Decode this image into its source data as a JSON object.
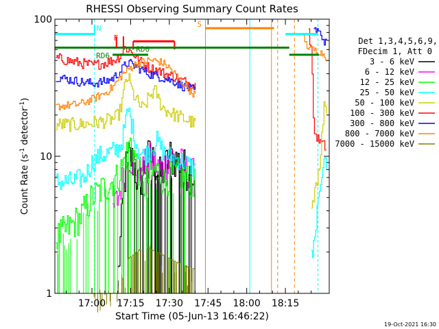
{
  "chart_data": {
    "type": "line",
    "title": "RHESSI Observing Summary Count Rates",
    "xlabel": "Start Time (05-Jun-13 16:46:22)",
    "ylabel": "Count Rate (s⁻¹ detector⁻¹)",
    "ylabel_main": "Count Rate (s",
    "ylabel_sup1": "-1",
    "ylabel_mid": " detector",
    "ylabel_sup2": "-1",
    "ylabel_end": ")",
    "y_scale": "log",
    "ylim": [
      1,
      100
    ],
    "xlim_minutes": [
      -14.37,
      92.0
    ],
    "x_ticks": [
      {
        "label": "17:00",
        "minutes": 0
      },
      {
        "label": "17:15",
        "minutes": 15
      },
      {
        "label": "17:30",
        "minutes": 30
      },
      {
        "label": "17:45",
        "minutes": 45
      },
      {
        "label": "18:00",
        "minutes": 60
      },
      {
        "label": "18:15",
        "minutes": 75
      }
    ],
    "y_ticks": [
      {
        "label": "1",
        "value": 1
      },
      {
        "label": "10",
        "value": 10
      },
      {
        "label": "100",
        "value": 100
      }
    ],
    "legend": {
      "placement": "right",
      "header1": "Det 1,3,4,5,6,9,",
      "header2": "FDecim 1, Att 0",
      "entries": [
        {
          "label": "3 - 6 keV",
          "color": "#000000"
        },
        {
          "label": "6 - 12 keV",
          "color": "#ff00ff"
        },
        {
          "label": "12 - 25 keV",
          "color": "#00ff00"
        },
        {
          "label": "25 - 50 keV",
          "color": "#00ffff"
        },
        {
          "label": "50 - 100 keV",
          "color": "#cccc00"
        },
        {
          "label": "100 - 300 keV",
          "color": "#ff0000"
        },
        {
          "label": "300 - 800 keV",
          "color": "#0000ff"
        },
        {
          "label": "800 - 7000 keV",
          "color": "#ff8000"
        },
        {
          "label": "7000 - 15000 keV",
          "color": "#808000"
        }
      ]
    },
    "series": [
      {
        "name": "3 - 6 keV",
        "color": "#000000",
        "noise": 0.35,
        "floor": 1,
        "x": [
          10,
          11,
          12,
          13,
          14,
          16,
          18,
          20,
          22,
          24,
          26,
          28,
          30,
          32,
          34,
          36,
          38,
          40
        ],
        "y": [
          1.4,
          2.5,
          5,
          8,
          10,
          9,
          6,
          8,
          10,
          9,
          7,
          8,
          10,
          9.5,
          9,
          8,
          7.5,
          7
        ]
      },
      {
        "name": "6 - 12 keV",
        "color": "#ff00ff",
        "noise": 0.3,
        "floor": 1,
        "x": [
          8,
          10,
          12,
          14,
          16,
          18,
          20,
          22,
          24,
          26,
          28,
          30,
          32,
          34,
          36,
          38,
          40
        ],
        "y": [
          4,
          5,
          7,
          10,
          9,
          7,
          8,
          9.5,
          9,
          8,
          8.5,
          10,
          9.5,
          9,
          8,
          7.5,
          7
        ]
      },
      {
        "name": "12 - 25 keV",
        "color": "#00ff00",
        "noise": 0.28,
        "floor": 1,
        "x": [
          -14,
          -5,
          0,
          5,
          10,
          13,
          15,
          17,
          20,
          22,
          25,
          28,
          30,
          33,
          36,
          38,
          40
        ],
        "y": [
          2.5,
          3.5,
          5,
          6,
          7,
          10,
          13,
          9,
          6,
          7,
          8,
          6.5,
          7,
          7.5,
          7,
          6.5,
          6
        ]
      },
      {
        "name": "25 - 50 keV",
        "color": "#00ffff",
        "noise": 0.18,
        "floor": 1,
        "x": [
          -14,
          -8,
          -3,
          0,
          3,
          6,
          9,
          11,
          12,
          13,
          14,
          16,
          18,
          20,
          22,
          24,
          25,
          26,
          28,
          30,
          33,
          36,
          38,
          40
        ],
        "y": [
          6.5,
          6.5,
          7,
          9,
          10,
          10.5,
          11,
          12,
          14,
          18,
          22,
          15,
          11,
          10,
          11,
          12,
          13,
          12,
          10.5,
          10,
          9.5,
          9,
          8.5,
          8
        ]
      },
      {
        "name": "50 - 100 keV",
        "color": "#cccc00",
        "noise": 0.12,
        "floor": 1,
        "x": [
          -14,
          -5,
          0,
          5,
          9,
          10,
          11,
          12,
          13,
          14,
          15,
          16,
          18,
          20,
          22,
          24,
          25,
          26,
          28,
          30,
          32,
          35,
          38,
          40
        ],
        "y": [
          17,
          17,
          17.5,
          18,
          19,
          20,
          22,
          28,
          35,
          38,
          32,
          28,
          24,
          22,
          27,
          30,
          29,
          25,
          22,
          21,
          20,
          19,
          18,
          17
        ]
      },
      {
        "name": "100 - 300 keV",
        "color": "#ff0000",
        "noise": 0.09,
        "floor": 1,
        "x": [
          -14,
          -5,
          0,
          5,
          8,
          10,
          11,
          12,
          13,
          14,
          16,
          18,
          20,
          22,
          24,
          26,
          28,
          30,
          32,
          34,
          36,
          38,
          40
        ],
        "y": [
          52,
          48,
          46,
          48,
          50,
          52,
          55,
          60,
          62,
          60,
          56,
          50,
          47,
          44,
          43,
          42,
          40,
          39,
          38,
          36,
          35,
          34,
          33
        ]
      },
      {
        "name": "300 - 800 keV",
        "color": "#0000ff",
        "noise": 0.08,
        "floor": 1,
        "x": [
          -14,
          -5,
          0,
          5,
          8,
          10,
          12,
          13,
          14,
          16,
          18,
          20,
          22,
          24,
          26,
          28,
          30,
          32,
          34,
          36,
          38,
          40
        ],
        "y": [
          38,
          35,
          34,
          35,
          37,
          40,
          44,
          47,
          48,
          46,
          44,
          42,
          40,
          39,
          38,
          37,
          36,
          35,
          33,
          32,
          31,
          30
        ]
      },
      {
        "name": "800 - 7000 keV",
        "color": "#ff8000",
        "noise": 0.07,
        "floor": 1,
        "x": [
          -14,
          -5,
          0,
          5,
          8,
          10,
          12,
          14,
          16,
          18,
          20,
          22,
          24,
          26,
          28,
          30,
          32,
          34,
          36,
          38,
          40
        ],
        "y": [
          23,
          24,
          26,
          29,
          32,
          36,
          40,
          43,
          46,
          48,
          49,
          50,
          50,
          49,
          47,
          44,
          40,
          36,
          33,
          30,
          28
        ]
      },
      {
        "name": "7000 - 15000 keV",
        "color": "#808000",
        "noise": 0.0,
        "floor": 1,
        "x": [
          0,
          10,
          14,
          20,
          25,
          30,
          35,
          40
        ],
        "y": [
          1,
          1,
          1.8,
          2.2,
          2,
          1.8,
          1.6,
          1.5
        ]
      }
    ],
    "series_after_gap": [
      {
        "name": "100 - 300 keV",
        "color": "#ff0000",
        "noise": 0.08,
        "floor": 1,
        "x": [
          84,
          85,
          86,
          88,
          90,
          91
        ],
        "y": [
          80,
          60,
          15,
          13,
          12,
          11
        ]
      },
      {
        "name": "300 - 800 keV",
        "color": "#0000ff",
        "noise": 0.08,
        "floor": 1,
        "x": [
          86,
          88,
          90,
          91
        ],
        "y": [
          85,
          80,
          70,
          65
        ]
      },
      {
        "name": "800 - 7000 keV",
        "color": "#ff8000",
        "noise": 0.06,
        "floor": 1,
        "x": [
          82,
          83,
          84,
          86,
          88,
          90,
          91
        ],
        "y": [
          75,
          65,
          62,
          60,
          58,
          55,
          52
        ]
      },
      {
        "name": "50 - 100 keV",
        "color": "#cccc00",
        "noise": 0.1,
        "floor": 1,
        "x": [
          85,
          88,
          90,
          91
        ],
        "y": [
          4,
          8,
          25,
          22
        ]
      },
      {
        "name": "25 - 50 keV",
        "color": "#00ffff",
        "noise": 0.15,
        "floor": 1,
        "x": [
          85,
          88,
          90,
          91
        ],
        "y": [
          1.8,
          5,
          10,
          9
        ]
      }
    ],
    "annotations": {
      "night_label": "N",
      "saa_label": "S",
      "rd0_label": "RD0",
      "rd6_label": "RD6",
      "f_label": "F",
      "night_bars": [
        [
          -14.37,
          1.0
        ],
        [
          75.0,
          87.5
        ]
      ],
      "night_lines": [
        1.0,
        61.2,
        87.6
      ],
      "saa_bar": [
        44.0,
        70.6
      ],
      "saa_lines": [
        44.0,
        69.6
      ],
      "orange_dashed_lines": [
        72.0,
        78.5
      ],
      "rd0_bar": [
        16.0,
        32.0
      ],
      "rd6_bar": [
        8.0,
        21.8
      ],
      "green_bar_long": [
        -14.37,
        76.5
      ],
      "green_bar_right": [
        76.5,
        88.0
      ],
      "red_markers": [
        9.5,
        12.2
      ]
    }
  },
  "timestamp": "19-Oct-2021 16:30"
}
